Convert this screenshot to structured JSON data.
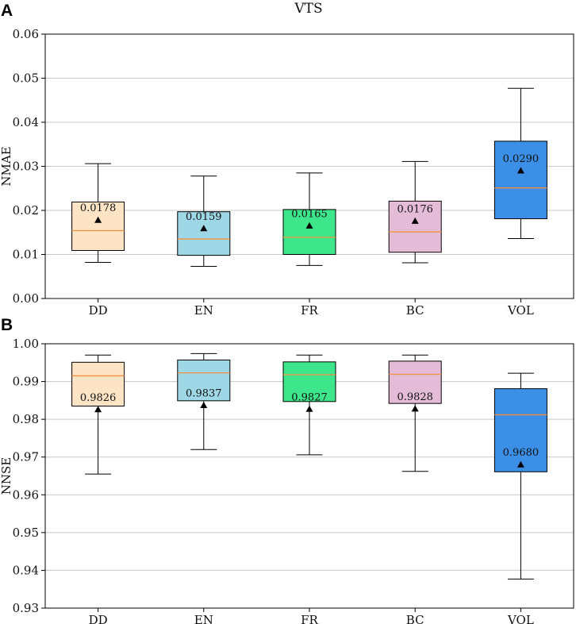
{
  "title": "VTS",
  "chart_data": [
    {
      "panel_label": "A",
      "type": "box",
      "title": "VTS",
      "xlabel": "",
      "ylabel": "NMAE",
      "ylim": [
        0.0,
        0.06
      ],
      "yticks": [
        "0.00",
        "0.01",
        "0.02",
        "0.03",
        "0.04",
        "0.05",
        "0.06"
      ],
      "grid": "horizontal",
      "categories": [
        "DD",
        "EN",
        "FR",
        "BC",
        "VOL"
      ],
      "boxes": [
        {
          "name": "DD",
          "color": "#fde4c4",
          "whisker_low": 0.0082,
          "q1": 0.0109,
          "median": 0.0154,
          "q3": 0.0219,
          "whisker_high": 0.0306,
          "mean": 0.0178,
          "mean_label": "0.0178"
        },
        {
          "name": "EN",
          "color": "#9ed8e6",
          "whisker_low": 0.0073,
          "q1": 0.0098,
          "median": 0.0135,
          "q3": 0.0197,
          "whisker_high": 0.0278,
          "mean": 0.0159,
          "mean_label": "0.0159"
        },
        {
          "name": "FR",
          "color": "#3ee68b",
          "whisker_low": 0.0075,
          "q1": 0.01,
          "median": 0.0139,
          "q3": 0.0202,
          "whisker_high": 0.0285,
          "mean": 0.0165,
          "mean_label": "0.0165"
        },
        {
          "name": "BC",
          "color": "#e4bcd8",
          "whisker_low": 0.0081,
          "q1": 0.0105,
          "median": 0.0151,
          "q3": 0.0221,
          "whisker_high": 0.0311,
          "mean": 0.0176,
          "mean_label": "0.0176"
        },
        {
          "name": "VOL",
          "color": "#3c8fe6",
          "whisker_low": 0.0136,
          "q1": 0.0181,
          "median": 0.0251,
          "q3": 0.0357,
          "whisker_high": 0.0477,
          "mean": 0.029,
          "mean_label": "0.0290"
        }
      ]
    },
    {
      "panel_label": "B",
      "type": "box",
      "title": "",
      "xlabel": "",
      "ylabel": "NNSE",
      "ylim": [
        0.93,
        1.0
      ],
      "yticks": [
        "0.93",
        "0.94",
        "0.95",
        "0.96",
        "0.97",
        "0.98",
        "0.99",
        "1.00"
      ],
      "grid": "horizontal",
      "categories": [
        "DD",
        "EN",
        "FR",
        "BC",
        "VOL"
      ],
      "boxes": [
        {
          "name": "DD",
          "color": "#fde4c4",
          "whisker_low": 0.9655,
          "q1": 0.9835,
          "median": 0.9915,
          "q3": 0.9951,
          "whisker_high": 0.997,
          "mean": 0.9826,
          "mean_label": "0.9826"
        },
        {
          "name": "EN",
          "color": "#9ed8e6",
          "whisker_low": 0.972,
          "q1": 0.9849,
          "median": 0.9923,
          "q3": 0.9957,
          "whisker_high": 0.9974,
          "mean": 0.9837,
          "mean_label": "0.9837"
        },
        {
          "name": "FR",
          "color": "#3ee68b",
          "whisker_low": 0.9706,
          "q1": 0.9847,
          "median": 0.9918,
          "q3": 0.9952,
          "whisker_high": 0.997,
          "mean": 0.9827,
          "mean_label": "0.9827"
        },
        {
          "name": "BC",
          "color": "#e4bcd8",
          "whisker_low": 0.9662,
          "q1": 0.9842,
          "median": 0.9919,
          "q3": 0.9954,
          "whisker_high": 0.997,
          "mean": 0.9828,
          "mean_label": "0.9828"
        },
        {
          "name": "VOL",
          "color": "#3c8fe6",
          "whisker_low": 0.9377,
          "q1": 0.9661,
          "median": 0.9812,
          "q3": 0.9881,
          "whisker_high": 0.9922,
          "mean": 0.968,
          "mean_label": "0.9680"
        }
      ]
    }
  ]
}
